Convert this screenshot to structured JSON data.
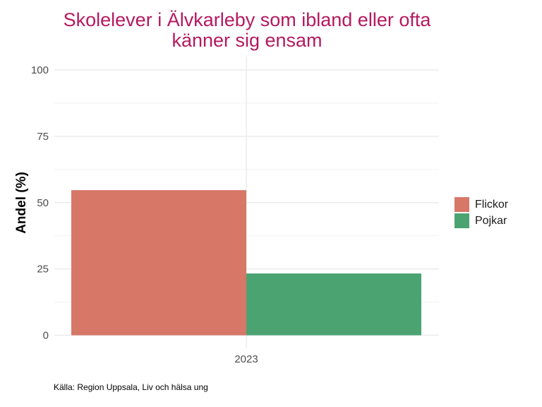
{
  "chart_data": {
    "type": "bar",
    "title_lines": [
      "Skolelever i Älvkarleby som ibland eller ofta",
      "känner sig ensam"
    ],
    "xlabel": "",
    "ylabel": "Andel (%)",
    "categories": [
      "2023"
    ],
    "series": [
      {
        "name": "Flickor",
        "color": "#D77768",
        "values": [
          54.7
        ]
      },
      {
        "name": "Pojkar",
        "color": "#4BA372",
        "values": [
          23.3
        ]
      }
    ],
    "ylim": [
      0,
      100
    ],
    "yticks": [
      0,
      25,
      50,
      75,
      100
    ],
    "grid": true,
    "legend_position": "right",
    "caption": "Källa: Region Uppsala, Liv och hälsa ung"
  }
}
